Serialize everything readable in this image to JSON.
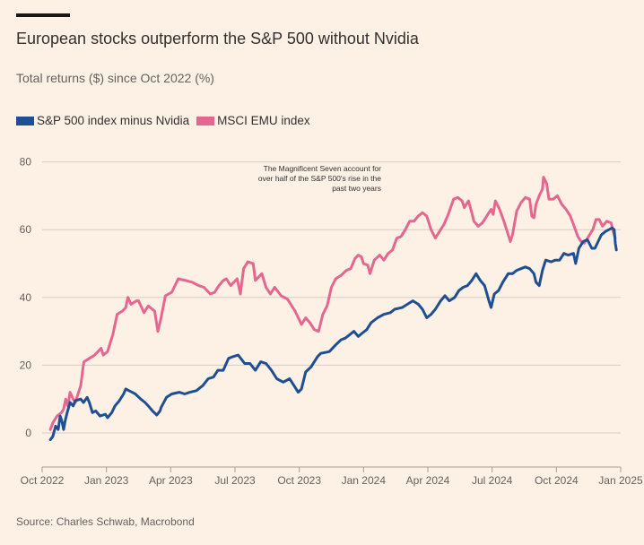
{
  "header": {
    "title": "European stocks outperform the S&P 500 without Nvidia",
    "subtitle": "Total returns ($) since Oct 2022 (%)"
  },
  "legend": [
    {
      "label": "S&P 500 index minus Nvidia",
      "color": "#1F4F93"
    },
    {
      "label": "MSCI EMU index",
      "color": "#E5668F"
    }
  ],
  "source": "Source: Charles Schwab, Macrobond",
  "colors": {
    "background": "#FDF1E6",
    "gridline": "#D9CCC1",
    "axis": "#A69C94",
    "sp500": "#1F4F93",
    "msci": "#E5668F"
  },
  "chart_data": {
    "type": "line",
    "title": "European stocks outperform the S&P 500 without Nvidia",
    "subtitle": "Total returns ($) since Oct 2022 (%)",
    "xlabel": "",
    "ylabel": "",
    "x_unit": "months since Oct 2022",
    "xlim": [
      0,
      27
    ],
    "ylim": [
      -5,
      82
    ],
    "y_ticks": [
      0,
      20,
      40,
      60,
      80
    ],
    "x_ticks": [
      {
        "value": 0,
        "label": "Oct 2022"
      },
      {
        "value": 3,
        "label": "Jan 2023"
      },
      {
        "value": 6,
        "label": "Apr 2023"
      },
      {
        "value": 9,
        "label": "Jul 2023"
      },
      {
        "value": 12,
        "label": "Oct 2023"
      },
      {
        "value": 15,
        "label": "Jan 2024"
      },
      {
        "value": 18,
        "label": "Apr 2024"
      },
      {
        "value": 21,
        "label": "Jul 2024"
      },
      {
        "value": 24,
        "label": "Oct 2024"
      },
      {
        "value": 27,
        "label": "Jan 2025"
      }
    ],
    "grid": true,
    "legend_position": "top-left",
    "annotation": {
      "lines": [
        "The Magnificent Seven account for",
        "over half of the S&P 500's rise in the",
        "past two years"
      ],
      "x": 14.6,
      "y": 79
    },
    "series": [
      {
        "name": "S&P 500 index minus Nvidia",
        "color": "#1F4F93",
        "points": [
          [
            0.38,
            -2
          ],
          [
            0.5,
            -1
          ],
          [
            0.63,
            2
          ],
          [
            0.75,
            1
          ],
          [
            0.84,
            5
          ],
          [
            0.92,
            3.5
          ],
          [
            1.0,
            1
          ],
          [
            1.09,
            4
          ],
          [
            1.17,
            6
          ],
          [
            1.3,
            9
          ],
          [
            1.45,
            8
          ],
          [
            1.55,
            9.5
          ],
          [
            1.8,
            10
          ],
          [
            1.93,
            9
          ],
          [
            2.1,
            10.5
          ],
          [
            2.2,
            9
          ],
          [
            2.35,
            6
          ],
          [
            2.5,
            6.5
          ],
          [
            2.7,
            5
          ],
          [
            2.95,
            5.5
          ],
          [
            3.05,
            4.5
          ],
          [
            3.25,
            6
          ],
          [
            3.4,
            8
          ],
          [
            3.6,
            9.5
          ],
          [
            3.8,
            11.5
          ],
          [
            3.9,
            13
          ],
          [
            4.05,
            12.5
          ],
          [
            4.2,
            12
          ],
          [
            4.35,
            11.5
          ],
          [
            4.6,
            10
          ],
          [
            4.8,
            9
          ],
          [
            4.95,
            8
          ],
          [
            5.15,
            6.5
          ],
          [
            5.35,
            5.3
          ],
          [
            5.5,
            6.5
          ],
          [
            5.55,
            7.5
          ],
          [
            5.8,
            10.5
          ],
          [
            6.05,
            11.5
          ],
          [
            6.4,
            12
          ],
          [
            6.65,
            11.5
          ],
          [
            6.9,
            12
          ],
          [
            7.2,
            12.5
          ],
          [
            7.5,
            14
          ],
          [
            7.75,
            16
          ],
          [
            8.0,
            16.5
          ],
          [
            8.2,
            18.5
          ],
          [
            8.45,
            18.5
          ],
          [
            8.7,
            22
          ],
          [
            8.9,
            22.5
          ],
          [
            9.15,
            23
          ],
          [
            9.45,
            20.5
          ],
          [
            9.7,
            20.5
          ],
          [
            9.95,
            18.5
          ],
          [
            10.2,
            21
          ],
          [
            10.45,
            20.5
          ],
          [
            10.7,
            18.5
          ],
          [
            10.95,
            16
          ],
          [
            11.25,
            15
          ],
          [
            11.55,
            16
          ],
          [
            11.75,
            14
          ],
          [
            11.95,
            12
          ],
          [
            12.1,
            13
          ],
          [
            12.3,
            18
          ],
          [
            12.55,
            19.5
          ],
          [
            12.85,
            22.5
          ],
          [
            13.0,
            23.5
          ],
          [
            13.4,
            24
          ],
          [
            13.7,
            26
          ],
          [
            13.95,
            27.5
          ],
          [
            14.15,
            28
          ],
          [
            14.35,
            29
          ],
          [
            14.55,
            30
          ],
          [
            14.75,
            28.5
          ],
          [
            14.95,
            29.5
          ],
          [
            15.15,
            30.5
          ],
          [
            15.35,
            32.5
          ],
          [
            15.65,
            34
          ],
          [
            15.95,
            35
          ],
          [
            16.25,
            35.5
          ],
          [
            16.45,
            36.5
          ],
          [
            16.8,
            37
          ],
          [
            17.05,
            38
          ],
          [
            17.3,
            39
          ],
          [
            17.55,
            38
          ],
          [
            17.75,
            36.5
          ],
          [
            17.95,
            34
          ],
          [
            18.15,
            35
          ],
          [
            18.35,
            36.5
          ],
          [
            18.6,
            39
          ],
          [
            18.8,
            40.5
          ],
          [
            19.0,
            39
          ],
          [
            19.25,
            40
          ],
          [
            19.45,
            42
          ],
          [
            19.65,
            43
          ],
          [
            19.85,
            43.5
          ],
          [
            20.05,
            45
          ],
          [
            20.25,
            47
          ],
          [
            20.45,
            45
          ],
          [
            20.65,
            43.5
          ],
          [
            20.85,
            39
          ],
          [
            20.95,
            37
          ],
          [
            21.1,
            41
          ],
          [
            21.3,
            42
          ],
          [
            21.5,
            44.5
          ],
          [
            21.75,
            47
          ],
          [
            21.95,
            47
          ],
          [
            22.15,
            48
          ],
          [
            22.35,
            48.5
          ],
          [
            22.55,
            49
          ],
          [
            22.75,
            48.5
          ],
          [
            22.95,
            47
          ],
          [
            23.05,
            44.5
          ],
          [
            23.2,
            43.5
          ],
          [
            23.35,
            48
          ],
          [
            23.5,
            51
          ],
          [
            23.75,
            50.5
          ],
          [
            23.95,
            51
          ],
          [
            24.15,
            51
          ],
          [
            24.35,
            53
          ],
          [
            24.55,
            52.5
          ],
          [
            24.8,
            53
          ],
          [
            24.9,
            50
          ],
          [
            25.05,
            54.5
          ],
          [
            25.25,
            56.5
          ],
          [
            25.45,
            57
          ],
          [
            25.65,
            54.5
          ],
          [
            25.8,
            54.5
          ],
          [
            25.95,
            56.5
          ],
          [
            26.1,
            58.5
          ],
          [
            26.3,
            59.5
          ],
          [
            26.45,
            60
          ],
          [
            26.6,
            60.5
          ],
          [
            26.7,
            60
          ],
          [
            26.75,
            56
          ],
          [
            26.8,
            54
          ]
        ]
      },
      {
        "name": "MSCI EMU index",
        "color": "#E5668F",
        "points": [
          [
            0.38,
            1
          ],
          [
            0.5,
            3
          ],
          [
            0.7,
            5
          ],
          [
            0.9,
            6
          ],
          [
            1.0,
            7
          ],
          [
            1.1,
            10
          ],
          [
            1.2,
            8
          ],
          [
            1.3,
            12
          ],
          [
            1.45,
            10
          ],
          [
            1.55,
            9
          ],
          [
            1.7,
            12
          ],
          [
            1.8,
            14
          ],
          [
            1.9,
            19
          ],
          [
            1.95,
            21
          ],
          [
            2.2,
            22
          ],
          [
            2.45,
            23
          ],
          [
            2.6,
            24
          ],
          [
            2.75,
            25
          ],
          [
            2.85,
            23
          ],
          [
            3.05,
            24
          ],
          [
            3.2,
            27
          ],
          [
            3.3,
            29
          ],
          [
            3.5,
            35
          ],
          [
            3.75,
            36
          ],
          [
            3.9,
            37
          ],
          [
            4.0,
            40
          ],
          [
            4.15,
            38
          ],
          [
            4.4,
            39
          ],
          [
            4.5,
            39
          ],
          [
            4.75,
            35.5
          ],
          [
            4.95,
            37.5
          ],
          [
            5.25,
            36
          ],
          [
            5.4,
            30
          ],
          [
            5.55,
            34
          ],
          [
            5.75,
            40.5
          ],
          [
            6.05,
            41.5
          ],
          [
            6.35,
            45.5
          ],
          [
            6.7,
            45
          ],
          [
            7.0,
            44.5
          ],
          [
            7.3,
            43.5
          ],
          [
            7.55,
            43
          ],
          [
            7.85,
            41
          ],
          [
            8.05,
            41.5
          ],
          [
            8.25,
            43.5
          ],
          [
            8.45,
            45
          ],
          [
            8.6,
            45.5
          ],
          [
            8.8,
            43.5
          ],
          [
            9.1,
            45.5
          ],
          [
            9.25,
            41
          ],
          [
            9.4,
            48.5
          ],
          [
            9.6,
            50.5
          ],
          [
            9.85,
            50
          ],
          [
            9.95,
            45
          ],
          [
            10.25,
            47
          ],
          [
            10.45,
            43
          ],
          [
            10.65,
            41
          ],
          [
            10.85,
            43
          ],
          [
            11.15,
            40.5
          ],
          [
            11.45,
            39.5
          ],
          [
            11.8,
            36
          ],
          [
            12.1,
            32
          ],
          [
            12.3,
            34
          ],
          [
            12.5,
            32.5
          ],
          [
            12.7,
            30.5
          ],
          [
            12.9,
            30
          ],
          [
            13.1,
            35
          ],
          [
            13.3,
            37.5
          ],
          [
            13.5,
            43
          ],
          [
            13.7,
            45.5
          ],
          [
            13.95,
            46.5
          ],
          [
            14.2,
            48
          ],
          [
            14.4,
            48.5
          ],
          [
            14.6,
            51.5
          ],
          [
            14.75,
            52.5
          ],
          [
            14.9,
            52
          ],
          [
            15.0,
            50
          ],
          [
            15.2,
            49.5
          ],
          [
            15.3,
            47
          ],
          [
            15.5,
            51
          ],
          [
            15.75,
            52.5
          ],
          [
            15.95,
            51
          ],
          [
            16.15,
            53
          ],
          [
            16.35,
            54
          ],
          [
            16.55,
            57.5
          ],
          [
            16.75,
            58
          ],
          [
            16.95,
            60
          ],
          [
            17.15,
            62.5
          ],
          [
            17.35,
            62.5
          ],
          [
            17.55,
            64
          ],
          [
            17.75,
            65
          ],
          [
            17.95,
            64
          ],
          [
            18.15,
            60
          ],
          [
            18.35,
            57.5
          ],
          [
            18.55,
            59.5
          ],
          [
            18.75,
            61.5
          ],
          [
            18.95,
            64.5
          ],
          [
            19.2,
            69
          ],
          [
            19.4,
            69.5
          ],
          [
            19.6,
            68.5
          ],
          [
            19.7,
            66.5
          ],
          [
            19.9,
            68.5
          ],
          [
            20.05,
            65
          ],
          [
            20.15,
            62.5
          ],
          [
            20.35,
            61
          ],
          [
            20.55,
            62
          ],
          [
            20.75,
            64
          ],
          [
            20.95,
            66
          ],
          [
            21.05,
            64.5
          ],
          [
            21.15,
            68.5
          ],
          [
            21.35,
            66
          ],
          [
            21.55,
            62.5
          ],
          [
            21.75,
            58.5
          ],
          [
            21.85,
            56.5
          ],
          [
            21.95,
            58.5
          ],
          [
            22.15,
            65.5
          ],
          [
            22.35,
            68
          ],
          [
            22.55,
            69.5
          ],
          [
            22.75,
            69
          ],
          [
            22.85,
            64
          ],
          [
            22.95,
            63.5
          ],
          [
            23.05,
            67.5
          ],
          [
            23.2,
            70
          ],
          [
            23.35,
            72
          ],
          [
            23.4,
            75.5
          ],
          [
            23.55,
            73.5
          ],
          [
            23.65,
            69
          ],
          [
            23.85,
            69
          ],
          [
            24.05,
            70
          ],
          [
            24.25,
            67.5
          ],
          [
            24.45,
            66
          ],
          [
            24.65,
            64
          ],
          [
            24.8,
            61.5
          ],
          [
            25.0,
            58
          ],
          [
            25.15,
            56.5
          ],
          [
            25.3,
            56
          ],
          [
            25.5,
            58
          ],
          [
            25.7,
            60
          ],
          [
            25.85,
            63
          ],
          [
            26.0,
            63
          ],
          [
            26.15,
            61
          ],
          [
            26.35,
            62.5
          ],
          [
            26.55,
            62
          ],
          [
            26.65,
            59.5
          ],
          [
            26.75,
            57.5
          ]
        ]
      }
    ]
  }
}
